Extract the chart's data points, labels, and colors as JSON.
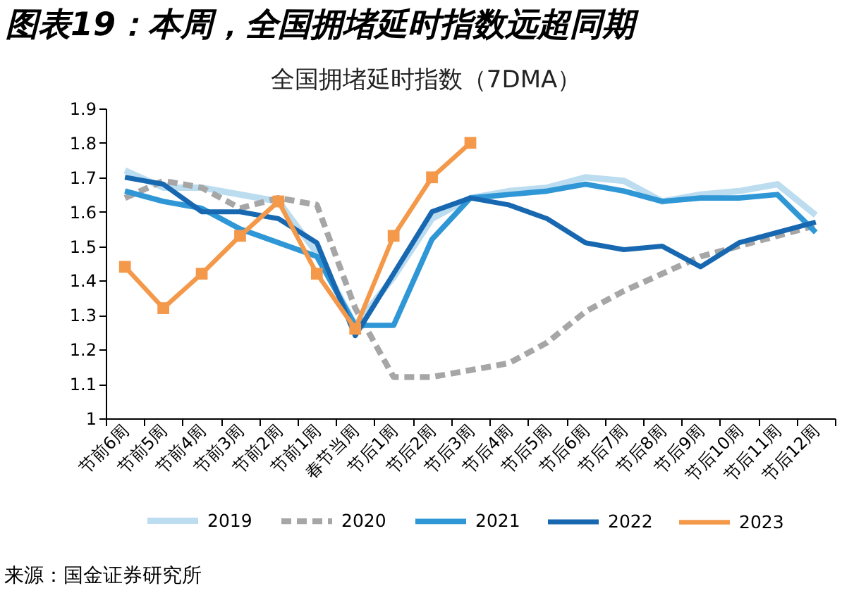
{
  "chart_data": {
    "type": "line",
    "title": "图表19：本周，全国拥堵延时指数远超同期",
    "subtitle": "全国拥堵延时指数（7DMA）",
    "categories": [
      "节前6周",
      "节前5周",
      "节前4周",
      "节前3周",
      "节前2周",
      "节前1周",
      "春节当周",
      "节后1周",
      "节后2周",
      "节后3周",
      "节后4周",
      "节后5周",
      "节后6周",
      "节后7周",
      "节后8周",
      "节后9周",
      "节后10周",
      "节后11周",
      "节后12周"
    ],
    "series": [
      {
        "name": "2019",
        "color": "#bcdcf0",
        "line_style": "solid",
        "values": [
          1.72,
          1.67,
          1.67,
          1.65,
          1.63,
          1.48,
          1.27,
          1.41,
          1.58,
          1.64,
          1.66,
          1.67,
          1.7,
          1.69,
          1.63,
          1.65,
          1.66,
          1.68,
          1.59
        ]
      },
      {
        "name": "2020",
        "color": "#a6a6a6",
        "line_style": "dashed",
        "values": [
          1.64,
          1.69,
          1.67,
          1.61,
          1.64,
          1.62,
          1.32,
          1.12,
          1.12,
          1.14,
          1.16,
          1.22,
          1.31,
          1.37,
          1.42,
          1.47,
          1.5,
          1.53,
          1.56
        ]
      },
      {
        "name": "2021",
        "color": "#2f97d6",
        "line_style": "solid",
        "values": [
          1.66,
          1.63,
          1.61,
          1.55,
          1.51,
          1.47,
          1.27,
          1.27,
          1.52,
          1.64,
          1.65,
          1.66,
          1.68,
          1.66,
          1.63,
          1.64,
          1.64,
          1.65,
          1.54
        ]
      },
      {
        "name": "2022",
        "color": "#1768b0",
        "line_style": "solid",
        "values": [
          1.7,
          1.68,
          1.6,
          1.6,
          1.58,
          1.51,
          1.24,
          1.42,
          1.6,
          1.64,
          1.62,
          1.58,
          1.51,
          1.49,
          1.5,
          1.44,
          1.51,
          1.54,
          1.57
        ]
      },
      {
        "name": "2023",
        "color": "#f4984a",
        "line_style": "solid",
        "marker": "square",
        "values": [
          1.44,
          1.32,
          1.42,
          1.53,
          1.63,
          1.42,
          1.26,
          1.53,
          1.7,
          1.8,
          null,
          null,
          null,
          null,
          null,
          null,
          null,
          null,
          null
        ]
      }
    ],
    "ylim": [
      1,
      1.9
    ],
    "yticks": [
      1,
      1.1,
      1.2,
      1.3,
      1.4,
      1.5,
      1.6,
      1.7,
      1.8,
      1.9
    ],
    "grid": false,
    "legend": "bottom",
    "annotations": [
      "来源：国金证券研究所"
    ]
  }
}
